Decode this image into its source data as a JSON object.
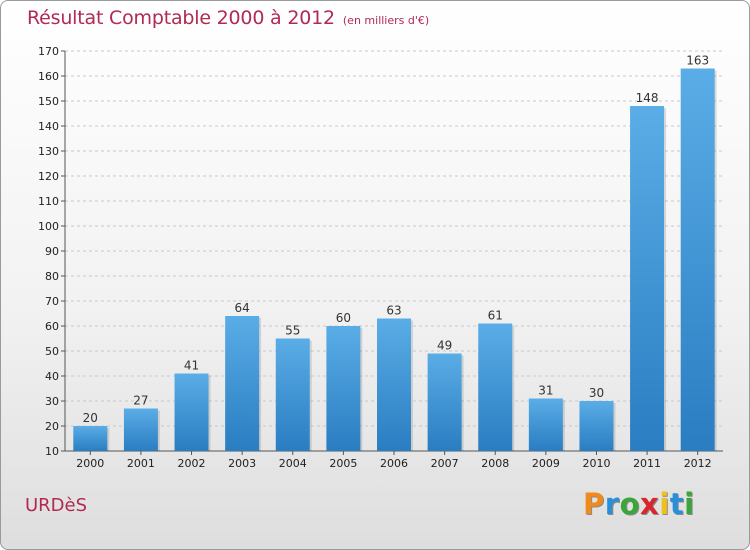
{
  "chart_data": {
    "type": "bar",
    "title": "Résultat Comptable 2000 à 2012",
    "subtitle": "(en milliers d'€)",
    "categories": [
      "2000",
      "2001",
      "2002",
      "2003",
      "2004",
      "2005",
      "2006",
      "2007",
      "2008",
      "2009",
      "2010",
      "2011",
      "2012"
    ],
    "values": [
      20,
      27,
      41,
      64,
      55,
      60,
      63,
      49,
      61,
      31,
      30,
      148,
      163
    ],
    "ylim": [
      10,
      170
    ],
    "ytick_step": 10,
    "xlabel": "",
    "ylabel": "",
    "grid": "horizontal-dashed",
    "bar_color_top": "#5aade6",
    "bar_color_bottom": "#2a7dc1"
  },
  "place_name": "URDèS",
  "brand": {
    "letters": [
      "P",
      "r",
      "o",
      "x",
      "i",
      "t",
      "i"
    ],
    "colors": [
      "#f08a1c",
      "#2a8fd6",
      "#3aa63a",
      "#d8262d",
      "#f2c01a",
      "#2a8fd6",
      "#3aa63a"
    ]
  }
}
